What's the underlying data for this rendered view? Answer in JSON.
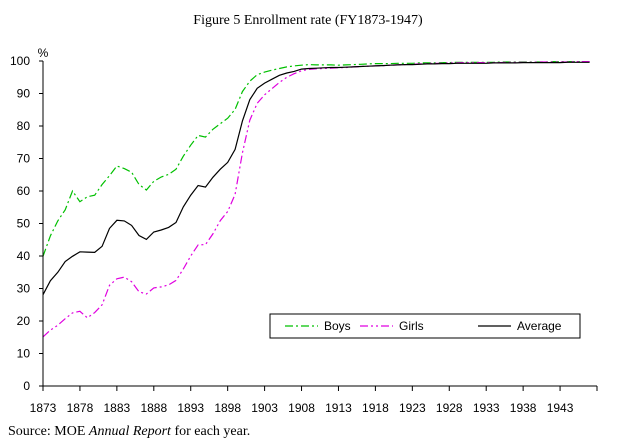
{
  "chart_data": {
    "type": "line",
    "title": "Figure 5 Enrollment rate (FY1873-1947)",
    "ylabel": "%",
    "xlabel": "",
    "xlim": [
      1873,
      1948
    ],
    "ylim": [
      0,
      100
    ],
    "y_ticks": [
      "0",
      "10",
      "20",
      "30",
      "40",
      "50",
      "60",
      "70",
      "80",
      "90",
      "100"
    ],
    "x_ticks": [
      "1873",
      "1878",
      "1883",
      "1888",
      "1893",
      "1898",
      "1903",
      "1908",
      "1913",
      "1918",
      "1923",
      "1928",
      "1933",
      "1938",
      "1943"
    ],
    "grid": false,
    "legend_position": "bottom-right",
    "x": [
      1873,
      1874,
      1875,
      1876,
      1877,
      1878,
      1879,
      1880,
      1881,
      1882,
      1883,
      1884,
      1885,
      1886,
      1887,
      1888,
      1889,
      1890,
      1891,
      1892,
      1893,
      1894,
      1895,
      1896,
      1897,
      1898,
      1899,
      1900,
      1901,
      1902,
      1903,
      1904,
      1905,
      1906,
      1907,
      1908,
      1909,
      1910,
      1911,
      1912,
      1913,
      1914,
      1915,
      1916,
      1917,
      1918,
      1919,
      1920,
      1921,
      1922,
      1923,
      1924,
      1925,
      1926,
      1927,
      1928,
      1929,
      1930,
      1931,
      1932,
      1933,
      1934,
      1935,
      1936,
      1937,
      1938,
      1939,
      1940,
      1941,
      1942,
      1943,
      1944,
      1945,
      1946,
      1947
    ],
    "series": [
      {
        "name": "Boys",
        "color": "#00c000",
        "dash": "dashdot",
        "values": [
          39.9,
          46.2,
          50.8,
          54.2,
          60.0,
          56.7,
          58.2,
          58.7,
          62.0,
          64.7,
          67.7,
          66.9,
          65.8,
          62.0,
          60.3,
          63.0,
          64.3,
          65.1,
          66.7,
          70.7,
          74.1,
          77.1,
          76.6,
          79.0,
          80.7,
          82.4,
          85.1,
          90.6,
          93.8,
          95.8,
          96.6,
          97.2,
          97.7,
          98.2,
          98.5,
          98.7,
          98.9,
          98.8,
          98.8,
          98.8,
          98.7,
          98.8,
          98.9,
          99.0,
          99.1,
          99.2,
          99.2,
          99.2,
          99.3,
          99.3,
          99.3,
          99.4,
          99.4,
          99.4,
          99.5,
          99.5,
          99.6,
          99.6,
          99.6,
          99.6,
          99.6,
          99.6,
          99.7,
          99.7,
          99.7,
          99.7,
          99.7,
          99.7,
          99.7,
          99.8,
          99.8,
          99.8,
          99.8,
          99.8,
          99.8
        ]
      },
      {
        "name": "Girls",
        "color": "#e000e0",
        "dash": "dashdotdot",
        "values": [
          15.1,
          17.2,
          18.7,
          20.7,
          22.5,
          23.0,
          21.0,
          22.6,
          25.0,
          31.0,
          33.0,
          33.5,
          32.1,
          29.0,
          28.3,
          30.2,
          30.5,
          31.1,
          32.5,
          36.0,
          40.0,
          43.4,
          43.5,
          46.8,
          50.9,
          53.7,
          59.0,
          71.7,
          81.8,
          87.0,
          89.6,
          91.5,
          93.4,
          95.0,
          96.1,
          97.0,
          97.4,
          97.6,
          97.7,
          97.8,
          97.9,
          98.0,
          98.2,
          98.3,
          98.4,
          98.5,
          98.6,
          98.7,
          98.8,
          98.9,
          99.0,
          99.1,
          99.2,
          99.3,
          99.3,
          99.4,
          99.4,
          99.5,
          99.5,
          99.5,
          99.5,
          99.5,
          99.5,
          99.6,
          99.6,
          99.6,
          99.6,
          99.7,
          99.7,
          99.7,
          99.7,
          99.7,
          99.8,
          99.8,
          99.8
        ]
      },
      {
        "name": "Average",
        "color": "#000000",
        "dash": "solid",
        "values": [
          28.1,
          32.4,
          35.0,
          38.3,
          39.9,
          41.3,
          41.2,
          41.1,
          43.0,
          48.5,
          51.0,
          50.8,
          49.4,
          46.3,
          45.1,
          47.4,
          48.0,
          48.8,
          50.3,
          55.1,
          58.7,
          61.7,
          61.2,
          64.2,
          66.7,
          68.8,
          72.8,
          81.5,
          88.1,
          91.6,
          93.2,
          94.4,
          95.6,
          96.3,
          96.8,
          97.5,
          97.7,
          97.8,
          97.9,
          98.0,
          98.0,
          98.1,
          98.2,
          98.3,
          98.4,
          98.5,
          98.6,
          98.7,
          98.8,
          98.9,
          98.9,
          99.0,
          99.1,
          99.1,
          99.2,
          99.2,
          99.3,
          99.3,
          99.3,
          99.3,
          99.3,
          99.4,
          99.4,
          99.4,
          99.4,
          99.5,
          99.5,
          99.5,
          99.5,
          99.5,
          99.5,
          99.6,
          99.6,
          99.6,
          99.6
        ]
      }
    ]
  },
  "source": {
    "prefix": "Source:  MOE ",
    "italic": "Annual Report",
    "suffix": " for each year."
  }
}
